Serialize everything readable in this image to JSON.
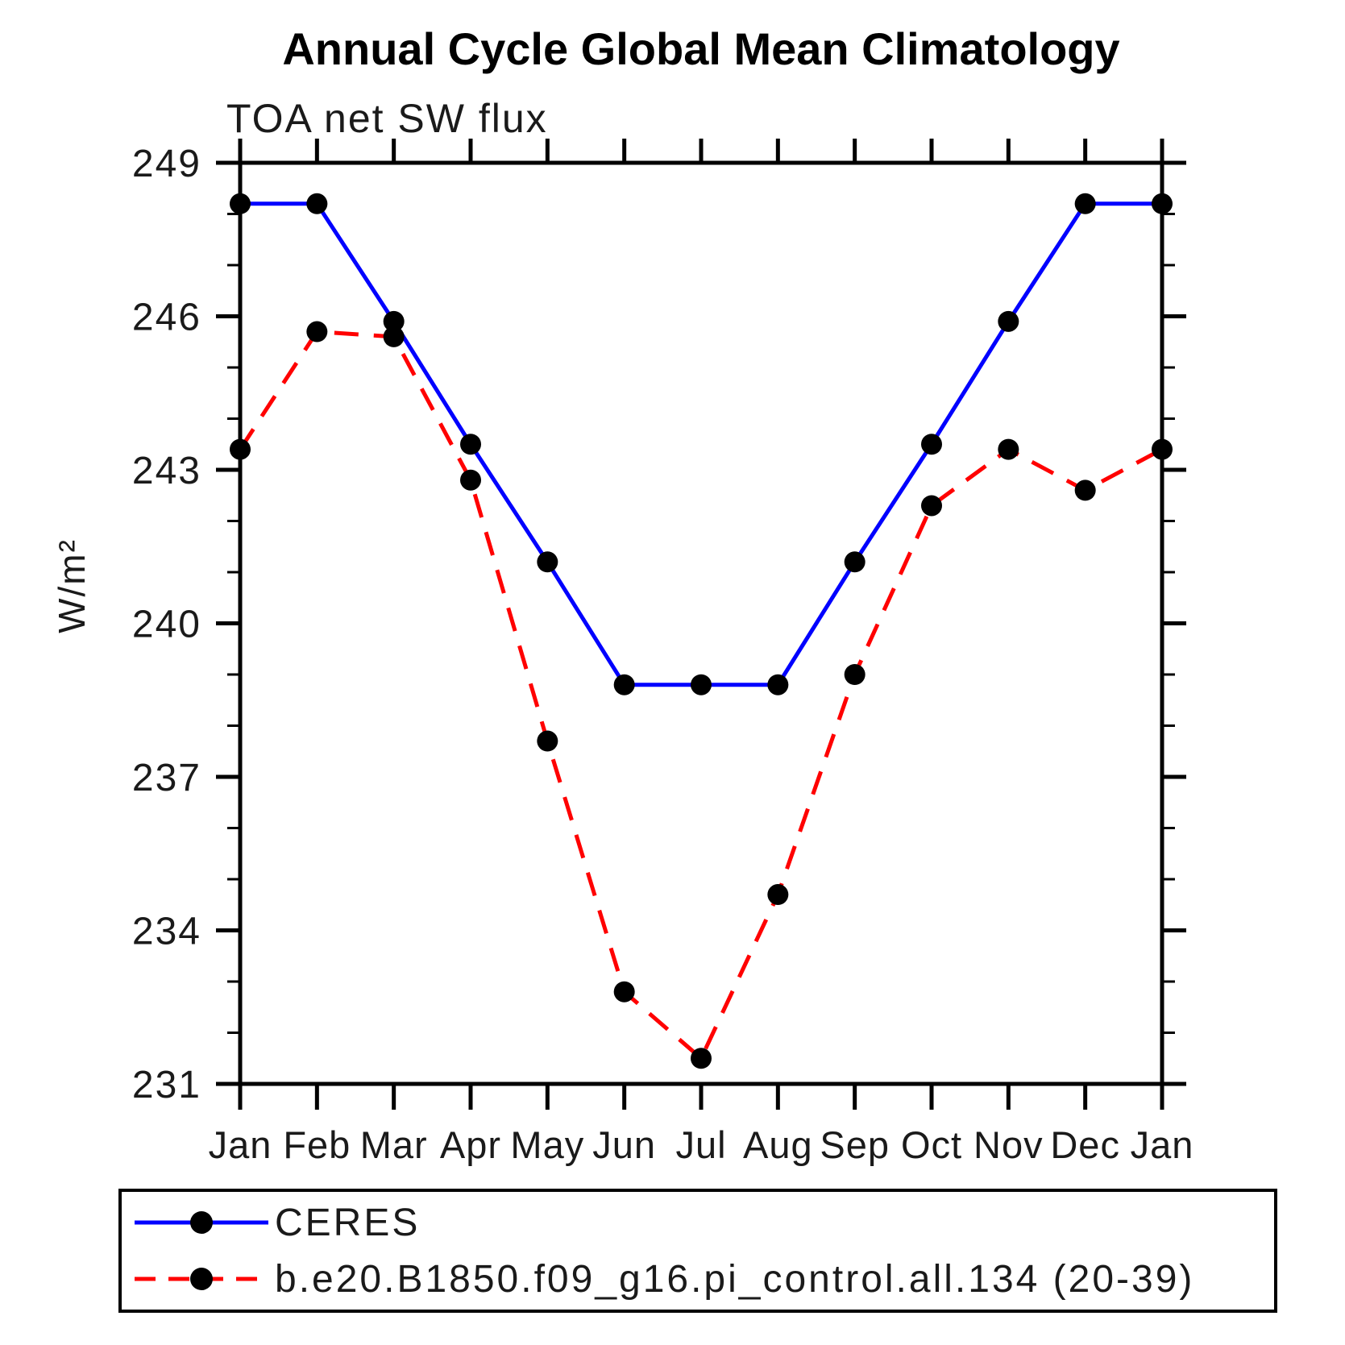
{
  "title": "Annual Cycle Global Mean Climatology",
  "subtitle": "TOA net SW flux",
  "chart_data": {
    "type": "line",
    "title": "Annual Cycle Global Mean Climatology",
    "subtitle": "TOA net SW flux",
    "xlabel": "",
    "ylabel": "W/m²",
    "x_categories": [
      "Jan",
      "Feb",
      "Mar",
      "Apr",
      "May",
      "Jun",
      "Jul",
      "Aug",
      "Sep",
      "Oct",
      "Nov",
      "Dec",
      "Jan"
    ],
    "ylim": [
      231,
      249
    ],
    "ytick_major": [
      231,
      234,
      237,
      240,
      243,
      246,
      249
    ],
    "ytick_major_labels": [
      "231",
      "234",
      "237",
      "240",
      "243",
      "246",
      "249"
    ],
    "ytick_minor_step": 1,
    "grid": "off",
    "legend_position": "bottom-left-box",
    "marker": {
      "shape": "circle",
      "color": "#000000"
    },
    "series": [
      {
        "name": "CERES",
        "color": "#0000ff",
        "line_style": "solid",
        "values": [
          248.2,
          248.2,
          245.9,
          243.5,
          241.2,
          238.8,
          238.8,
          238.8,
          241.2,
          243.5,
          245.9,
          248.2,
          248.2
        ]
      },
      {
        "name": "b.e20.B1850.f09_g16.pi_control.all.134 (20-39)",
        "color": "#ff0000",
        "line_style": "dashed",
        "values": [
          243.4,
          245.7,
          245.6,
          242.8,
          237.7,
          232.8,
          231.5,
          234.7,
          239.0,
          242.3,
          243.4,
          242.6,
          243.4
        ]
      }
    ]
  }
}
